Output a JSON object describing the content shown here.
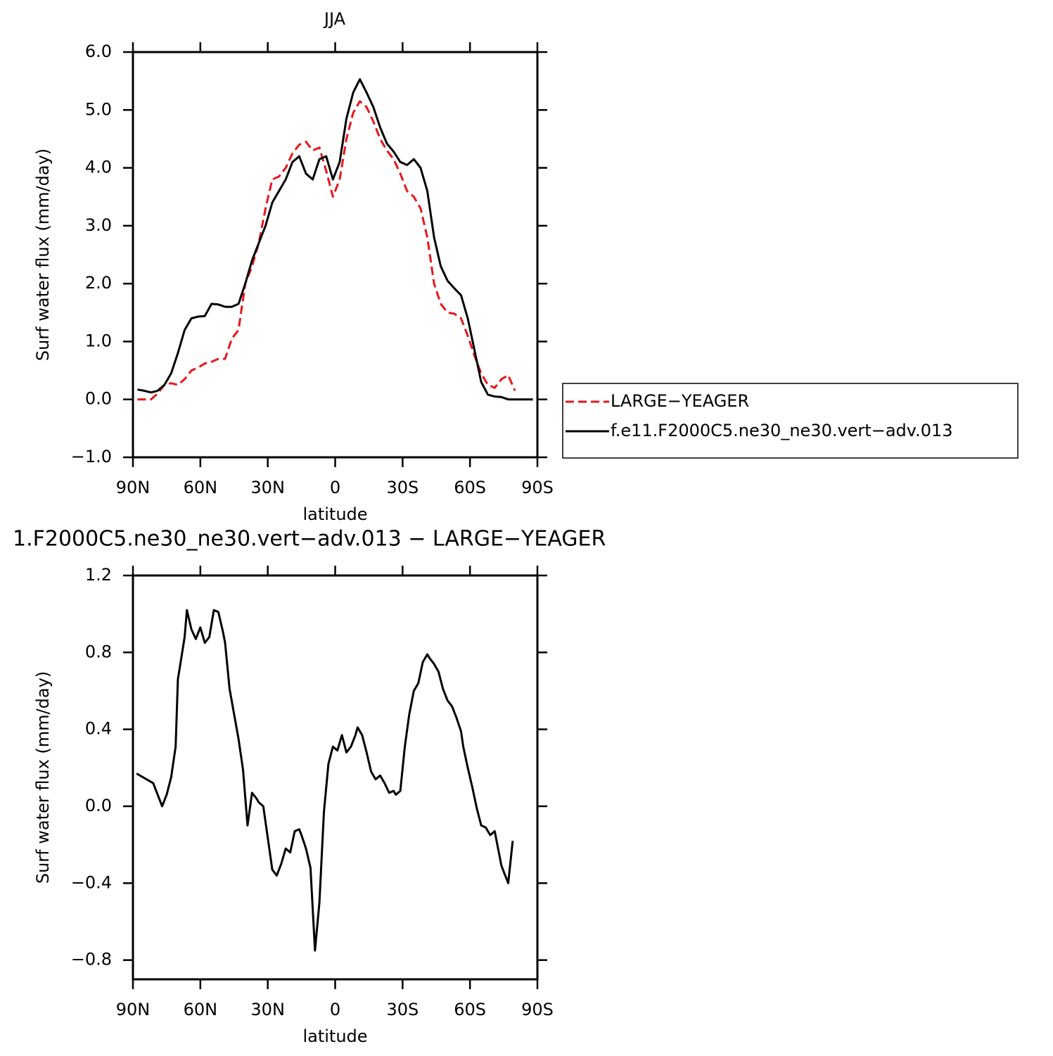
{
  "chart_data": [
    {
      "type": "line",
      "title": "JJA",
      "xlabel": "latitude",
      "ylabel": "Surf water flux (mm/day)",
      "xlim": [
        90,
        -90
      ],
      "ylim": [
        -1,
        6
      ],
      "xticks": [
        {
          "value": 90,
          "label": "90N"
        },
        {
          "value": 60,
          "label": "60N"
        },
        {
          "value": 30,
          "label": "30N"
        },
        0,
        {
          "value": -30,
          "label": "30S"
        },
        {
          "value": -60,
          "label": "60S"
        },
        {
          "value": -90,
          "label": "90S"
        }
      ],
      "yticks": [
        {
          "value": 6,
          "label": "6.0"
        },
        {
          "value": 5,
          "label": "5.0"
        },
        {
          "value": 4,
          "label": "4.0"
        },
        {
          "value": 3,
          "label": "3.0"
        },
        {
          "value": 2,
          "label": "2.0"
        },
        {
          "value": 1,
          "label": "1.0"
        },
        {
          "value": 0,
          "label": "0.0"
        },
        {
          "value": -1,
          "label": "−1.0"
        }
      ],
      "legend": "right",
      "x": [
        88,
        85,
        82,
        79,
        76,
        73,
        70,
        67,
        64,
        61,
        58,
        55,
        52,
        49,
        46,
        43,
        40,
        37,
        34,
        31,
        28,
        25,
        22,
        19,
        16,
        13,
        10,
        7,
        4,
        1,
        -2,
        -5,
        -8,
        -11,
        -14,
        -17,
        -20,
        -23,
        -26,
        -29,
        -32,
        -35,
        -38,
        -41,
        -44,
        -47,
        -50,
        -53,
        -56,
        -59,
        -62,
        -65,
        -68,
        -71,
        -74,
        -77,
        -80,
        -83,
        -86,
        -88
      ],
      "series": [
        {
          "name": "LARGE−YEAGER",
          "color": "#e8161b",
          "line_style": "dashed",
          "values": [
            0,
            0,
            0,
            0.1,
            0.25,
            0.28,
            0.25,
            0.35,
            0.5,
            0.55,
            0.62,
            0.65,
            0.7,
            0.7,
            1.05,
            1.2,
            2.0,
            2.3,
            2.7,
            3.3,
            3.8,
            3.85,
            4.0,
            4.25,
            4.4,
            4.45,
            4.3,
            4.35,
            3.95,
            3.5,
            3.8,
            4.5,
            4.95,
            5.15,
            5.05,
            4.8,
            4.5,
            4.3,
            4.15,
            3.9,
            3.6,
            3.5,
            3.3,
            2.8,
            2.0,
            1.65,
            1.5,
            1.48,
            1.4,
            1.1,
            0.75,
            0.45,
            0.25,
            0.2,
            0.35,
            0.42,
            0.15,
            null,
            null,
            null
          ]
        },
        {
          "name": "f.e11.F2000C5.ne30_ne30.vert−adv.013",
          "color": "#000000",
          "line_style": "solid",
          "values": [
            0.17,
            0.15,
            0.12,
            0.15,
            0.25,
            0.45,
            0.8,
            1.2,
            1.4,
            1.43,
            1.44,
            1.65,
            1.64,
            1.6,
            1.6,
            1.65,
            2.0,
            2.4,
            2.7,
            3.0,
            3.4,
            3.6,
            3.8,
            4.1,
            4.2,
            3.9,
            3.8,
            4.15,
            4.2,
            3.8,
            4.1,
            4.85,
            5.3,
            5.53,
            5.3,
            5.05,
            4.7,
            4.42,
            4.28,
            4.1,
            4.05,
            4.15,
            4.0,
            3.6,
            2.8,
            2.3,
            2.05,
            1.92,
            1.8,
            1.4,
            0.85,
            0.3,
            0.08,
            0.05,
            0.04,
            0,
            0,
            0,
            0,
            0
          ]
        }
      ]
    },
    {
      "type": "line",
      "title": "1.F2000C5.ne30_ne30.vert−adv.013 − LARGE−YEAGER",
      "xlabel": "latitude",
      "ylabel": "Surf water flux (mm/day)",
      "xlim": [
        90,
        -90
      ],
      "ylim": [
        -0.9,
        1.2
      ],
      "xticks": [
        {
          "value": 90,
          "label": "90N"
        },
        {
          "value": 60,
          "label": "60N"
        },
        {
          "value": 30,
          "label": "30N"
        },
        0,
        {
          "value": -30,
          "label": "30S"
        },
        {
          "value": -60,
          "label": "60S"
        },
        {
          "value": -90,
          "label": "90S"
        }
      ],
      "yticks": [
        {
          "value": 1.2,
          "label": "1.2"
        },
        {
          "value": 0.8,
          "label": "0.8"
        },
        {
          "value": 0.4,
          "label": "0.4"
        },
        {
          "value": 0,
          "label": "0.0"
        },
        {
          "value": -0.4,
          "label": "−0.4"
        },
        {
          "value": -0.8,
          "label": "−0.8"
        }
      ],
      "x": [
        88.4,
        81,
        77,
        75,
        73,
        71,
        70,
        67,
        66,
        64,
        62,
        60,
        58,
        56,
        54,
        52,
        50,
        49,
        47,
        43,
        41,
        39,
        37,
        35,
        34,
        32,
        28,
        26,
        24,
        22,
        20,
        18,
        16,
        15,
        13,
        11,
        9,
        7,
        5,
        3,
        1,
        -1,
        -3,
        -5,
        -7,
        -9,
        -10,
        -12,
        -14,
        -16,
        -18,
        -20,
        -22,
        -24,
        -26,
        -27,
        -29,
        -31,
        -33,
        -35,
        -37,
        -39,
        -41,
        -42,
        -44,
        -46,
        -48,
        -50,
        -52,
        -54,
        -56,
        -57,
        -59,
        -61,
        -63,
        -65,
        -67,
        -69,
        -71,
        -72,
        -74,
        -77,
        -79
      ],
      "color": "#000000",
      "values": [
        0.17,
        0.12,
        0.0,
        0.06,
        0.15,
        0.31,
        0.66,
        0.88,
        1.02,
        0.92,
        0.87,
        0.93,
        0.85,
        0.88,
        1.02,
        1.01,
        0.91,
        0.85,
        0.61,
        0.35,
        0.19,
        -0.1,
        0.07,
        0.04,
        0.02,
        0.0,
        -0.33,
        -0.36,
        -0.3,
        -0.22,
        -0.24,
        -0.13,
        -0.12,
        -0.15,
        -0.22,
        -0.32,
        -0.75,
        -0.5,
        -0.03,
        0.22,
        0.31,
        0.29,
        0.37,
        0.28,
        0.31,
        0.37,
        0.41,
        0.37,
        0.28,
        0.18,
        0.14,
        0.16,
        0.12,
        0.07,
        0.08,
        0.06,
        0.08,
        0.31,
        0.48,
        0.6,
        0.64,
        0.75,
        0.79,
        0.77,
        0.74,
        0.7,
        0.61,
        0.55,
        0.52,
        0.46,
        0.39,
        0.31,
        0.2,
        0.1,
        -0.01,
        -0.1,
        -0.11,
        -0.15,
        -0.13,
        -0.19,
        -0.31,
        -0.4,
        -0.18
      ]
    }
  ]
}
